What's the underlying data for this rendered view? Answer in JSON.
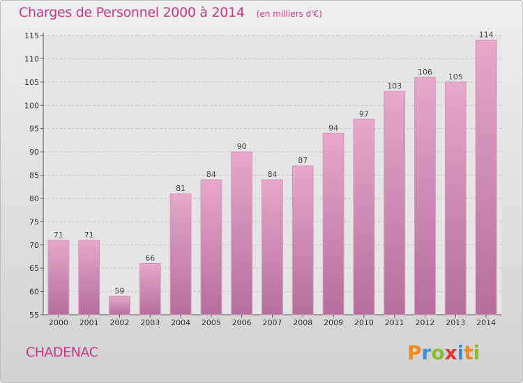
{
  "chart_data": {
    "type": "bar",
    "title": "Charges de Personnel 2000 à 2014",
    "subtitle": "(en milliers d'€)",
    "categories": [
      "2000",
      "2001",
      "2002",
      "2003",
      "2004",
      "2005",
      "2006",
      "2007",
      "2008",
      "2009",
      "2010",
      "2011",
      "2012",
      "2013",
      "2014"
    ],
    "values": [
      71,
      71,
      59,
      66,
      81,
      84,
      90,
      84,
      87,
      94,
      97,
      103,
      106,
      105,
      114
    ],
    "xlabel": "",
    "ylabel": "",
    "ylim": [
      55,
      115
    ],
    "yticks": [
      55,
      60,
      65,
      70,
      75,
      80,
      85,
      90,
      95,
      100,
      105,
      110,
      115
    ],
    "grid": true,
    "bar_color_top": "#e6a8cb",
    "bar_color_bottom": "#b46f9b"
  },
  "footer": {
    "commune": "CHADENAC",
    "brand_letters": [
      "P",
      "r",
      "o",
      "x",
      "i",
      "t",
      "i"
    ],
    "brand_colors": [
      "#ee8a22",
      "#3f8fd2",
      "#8bbd2b",
      "#e43636",
      "#3f8fd2",
      "#ee8a22",
      "#8bbd2b"
    ]
  }
}
